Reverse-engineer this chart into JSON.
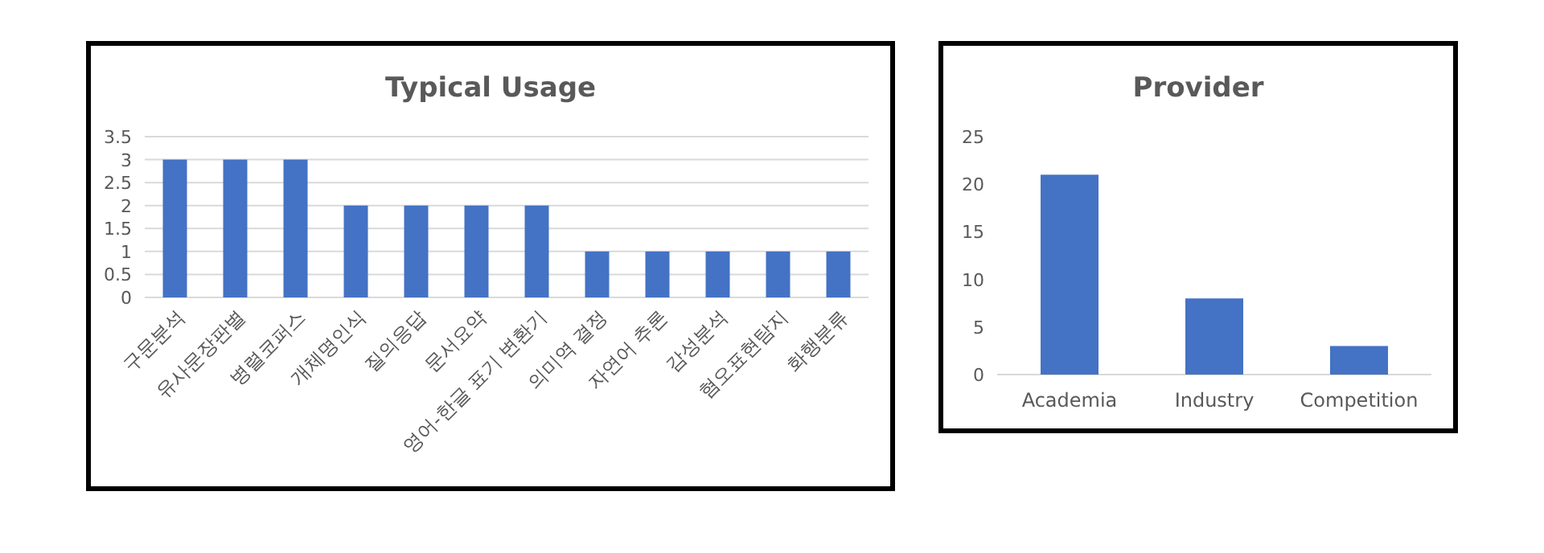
{
  "chart_data": [
    {
      "type": "bar",
      "title": "Typical Usage",
      "categories": [
        "구문분석",
        "유사문장판별",
        "병렬코퍼스",
        "개체명인식",
        "질의응답",
        "문서요약",
        "영어-한글 표기 변환기",
        "의미역 결정",
        "자연어 추론",
        "감성분석",
        "혐오표현탐지",
        "화행분류"
      ],
      "values": [
        3,
        3,
        3,
        2,
        2,
        2,
        2,
        1,
        1,
        1,
        1,
        1
      ],
      "color": "#4472c4",
      "ylim": [
        0,
        3.5
      ],
      "yticks": [
        0,
        0.5,
        1,
        1.5,
        2,
        2.5,
        3,
        3.5
      ],
      "grid": "y"
    },
    {
      "type": "bar",
      "title": "Provider",
      "categories": [
        "Academia",
        "Industry",
        "Competition"
      ],
      "values": [
        21,
        8,
        3
      ],
      "color": "#4472c4",
      "ylim": [
        0,
        25
      ],
      "yticks": [
        0,
        5,
        10,
        15,
        20,
        25
      ]
    }
  ]
}
